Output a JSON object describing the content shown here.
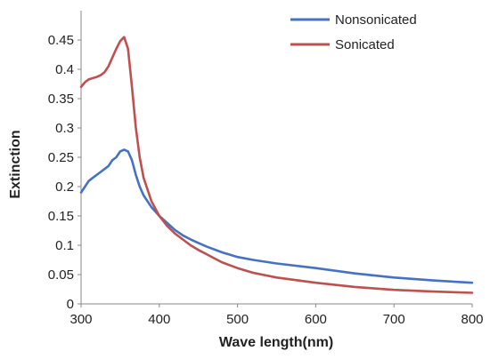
{
  "chart_data": {
    "type": "line",
    "title": "",
    "xlabel": "Wave length(nm)",
    "ylabel": "Extinction",
    "xlim": [
      300,
      800
    ],
    "ylim": [
      0,
      0.5
    ],
    "x_ticks": [
      300,
      400,
      500,
      600,
      700,
      800
    ],
    "y_ticks": [
      0,
      0.05,
      0.1,
      0.15,
      0.2,
      0.25,
      0.3,
      0.35,
      0.4,
      0.45
    ],
    "y_tick_labels": [
      "0",
      "0.05",
      "0.1",
      "0.15",
      "0.2",
      "0.25",
      "0.3",
      "0.35",
      "0.4",
      "0.45"
    ],
    "x_tick_labels": [
      "300",
      "400",
      "500",
      "600",
      "700",
      "800"
    ],
    "grid": false,
    "legend_position": "top-right",
    "series": [
      {
        "name": "Nonsonicated",
        "color": "#4472C4",
        "x": [
          300,
          305,
          310,
          315,
          320,
          325,
          330,
          335,
          340,
          345,
          350,
          355,
          360,
          365,
          370,
          375,
          380,
          390,
          400,
          410,
          420,
          430,
          440,
          450,
          460,
          480,
          500,
          520,
          550,
          600,
          650,
          700,
          750,
          800
        ],
        "y": [
          0.19,
          0.2,
          0.21,
          0.215,
          0.22,
          0.225,
          0.23,
          0.235,
          0.245,
          0.25,
          0.26,
          0.263,
          0.26,
          0.245,
          0.22,
          0.2,
          0.185,
          0.165,
          0.15,
          0.138,
          0.126,
          0.117,
          0.11,
          0.104,
          0.098,
          0.088,
          0.08,
          0.075,
          0.069,
          0.061,
          0.052,
          0.045,
          0.04,
          0.036
        ]
      },
      {
        "name": "Sonicated",
        "color": "#C0504D",
        "x": [
          300,
          305,
          310,
          315,
          320,
          325,
          330,
          335,
          340,
          345,
          350,
          355,
          360,
          365,
          370,
          375,
          380,
          390,
          400,
          410,
          420,
          430,
          440,
          450,
          460,
          480,
          500,
          520,
          550,
          600,
          650,
          700,
          750,
          800
        ],
        "y": [
          0.37,
          0.378,
          0.383,
          0.385,
          0.387,
          0.39,
          0.395,
          0.405,
          0.42,
          0.435,
          0.448,
          0.455,
          0.435,
          0.37,
          0.3,
          0.25,
          0.215,
          0.175,
          0.15,
          0.133,
          0.12,
          0.11,
          0.1,
          0.092,
          0.085,
          0.071,
          0.061,
          0.053,
          0.045,
          0.036,
          0.029,
          0.024,
          0.021,
          0.019
        ]
      }
    ]
  }
}
